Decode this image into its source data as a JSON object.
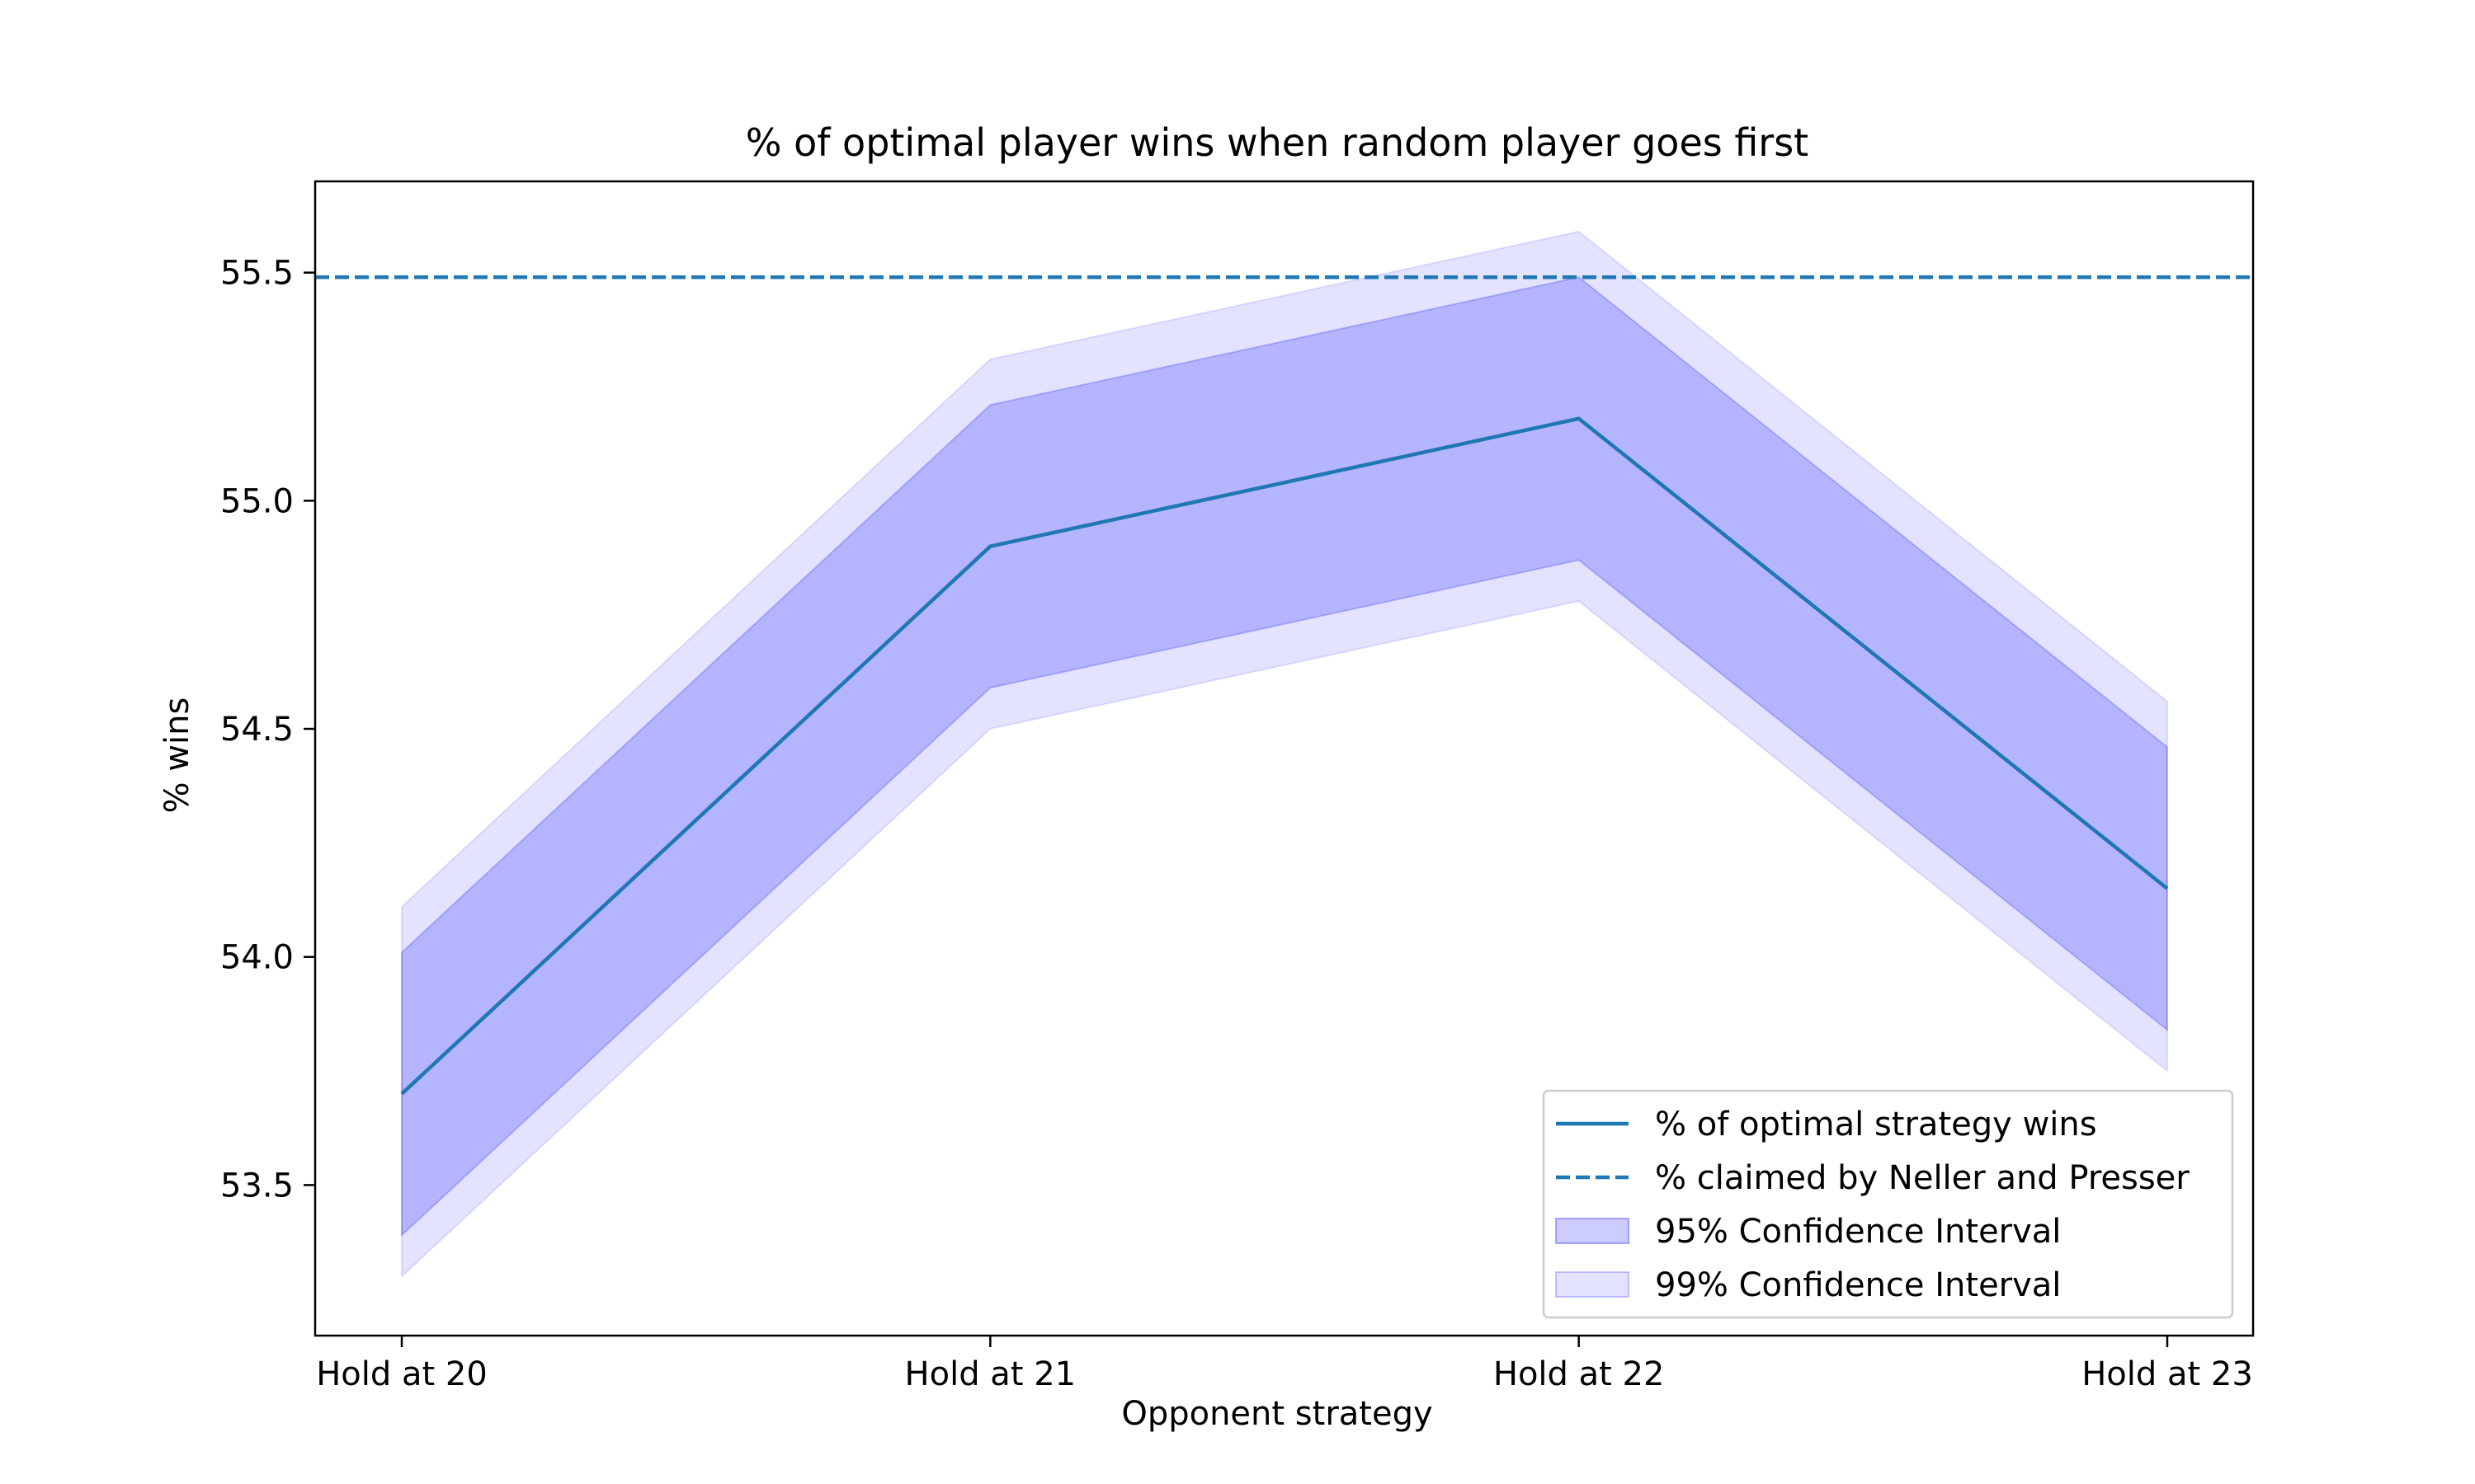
{
  "chart_data": {
    "type": "line",
    "title": "% of optimal player wins when random player goes first",
    "xlabel": "Opponent strategy",
    "ylabel": "% wins",
    "categories": [
      "Hold at 20",
      "Hold at 21",
      "Hold at 22",
      "Hold at 23"
    ],
    "ylim": [
      53.17,
      55.7
    ],
    "yticks": [
      53.5,
      54.0,
      54.5,
      55.0,
      55.5
    ],
    "ytick_labels": [
      "53.5",
      "54.0",
      "54.5",
      "55.0",
      "55.5"
    ],
    "grid": false,
    "legend_position": "bottom-right",
    "series": [
      {
        "name": "% of optimal strategy wins",
        "style": "solid",
        "color": "#1f77b4",
        "values": [
          53.7,
          54.9,
          55.18,
          54.15
        ]
      }
    ],
    "reference_line": {
      "name": "% claimed by Neller and Presser",
      "style": "dashed",
      "color": "#1f77b4",
      "value": 55.49
    },
    "bands": [
      {
        "name": "99% Confidence Interval",
        "color": "#0000ff",
        "opacity": 0.11,
        "lower": [
          53.3,
          54.5,
          54.78,
          53.75
        ],
        "upper": [
          54.11,
          55.31,
          55.59,
          54.56
        ]
      },
      {
        "name": "95% Confidence Interval",
        "color": "#0000ff",
        "opacity": 0.2,
        "lower": [
          53.39,
          54.59,
          54.87,
          53.84
        ],
        "upper": [
          54.01,
          55.21,
          55.49,
          54.46
        ]
      }
    ],
    "legend": [
      {
        "name": "% of optimal strategy wins",
        "kind": "line",
        "style": "solid",
        "color": "#1f77b4"
      },
      {
        "name": "% claimed by Neller and Presser",
        "kind": "line",
        "style": "dashed",
        "color": "#1f77b4"
      },
      {
        "name": "95% Confidence Interval",
        "kind": "patch",
        "color": "#0000ff",
        "opacity": 0.2
      },
      {
        "name": "99% Confidence Interval",
        "kind": "patch",
        "color": "#0000ff",
        "opacity": 0.11
      }
    ]
  }
}
